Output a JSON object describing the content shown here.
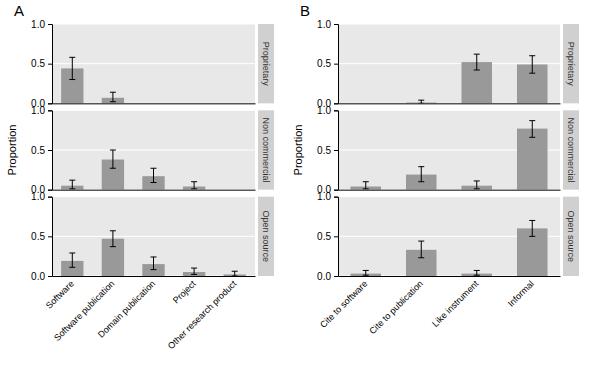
{
  "chart_data": [
    {
      "type": "bar",
      "title": "A",
      "ylabel": "Proportion",
      "categories": [
        "Software",
        "Software publication",
        "Domain publication",
        "Project",
        "Other research product"
      ],
      "color": "#999999",
      "ylim": [
        0,
        1.0
      ],
      "yticks": [
        {
          "value": 0.0,
          "label": "0.0"
        },
        {
          "value": 0.5,
          "label": "0.5"
        },
        {
          "value": 1.0,
          "label": "1.0"
        }
      ],
      "grid": true,
      "series": [
        {
          "name": "Proprietary",
          "values": [
            0.44,
            0.07,
            0.0,
            0.0,
            0.0
          ],
          "ci_low": [
            0.3,
            0.02,
            0.0,
            0.0,
            0.0
          ],
          "ci_high": [
            0.58,
            0.14,
            0.0,
            0.0,
            0.0
          ]
        },
        {
          "name": "Non commercial",
          "values": [
            0.05,
            0.38,
            0.17,
            0.04,
            0.0
          ],
          "ci_low": [
            0.01,
            0.27,
            0.09,
            0.01,
            0.0
          ],
          "ci_high": [
            0.12,
            0.5,
            0.27,
            0.1,
            0.0
          ]
        },
        {
          "name": "Open source",
          "values": [
            0.19,
            0.47,
            0.15,
            0.05,
            0.02
          ],
          "ci_low": [
            0.11,
            0.37,
            0.08,
            0.02,
            0.0
          ],
          "ci_high": [
            0.29,
            0.57,
            0.24,
            0.1,
            0.06
          ]
        }
      ]
    },
    {
      "type": "bar",
      "title": "B",
      "ylabel": "Proportion",
      "categories": [
        "Cite to software",
        "Cite to publication",
        "Like instrument",
        "Informal"
      ],
      "color": "#999999",
      "ylim": [
        0,
        1.0
      ],
      "yticks": [
        {
          "value": 0.0,
          "label": "0.0"
        },
        {
          "value": 0.5,
          "label": "0.5"
        },
        {
          "value": 1.0,
          "label": "1.0"
        }
      ],
      "grid": true,
      "series": [
        {
          "name": "Proprietary",
          "values": [
            0.0,
            0.01,
            0.52,
            0.49
          ],
          "ci_low": [
            0.0,
            0.0,
            0.42,
            0.38
          ],
          "ci_high": [
            0.0,
            0.04,
            0.62,
            0.6
          ]
        },
        {
          "name": "Non commercial",
          "values": [
            0.04,
            0.19,
            0.05,
            0.77
          ],
          "ci_low": [
            0.01,
            0.1,
            0.01,
            0.66
          ],
          "ci_high": [
            0.1,
            0.29,
            0.11,
            0.87
          ]
        },
        {
          "name": "Open source",
          "values": [
            0.03,
            0.33,
            0.03,
            0.6
          ],
          "ci_low": [
            0.01,
            0.23,
            0.01,
            0.5
          ],
          "ci_high": [
            0.07,
            0.44,
            0.07,
            0.7
          ]
        }
      ]
    }
  ]
}
